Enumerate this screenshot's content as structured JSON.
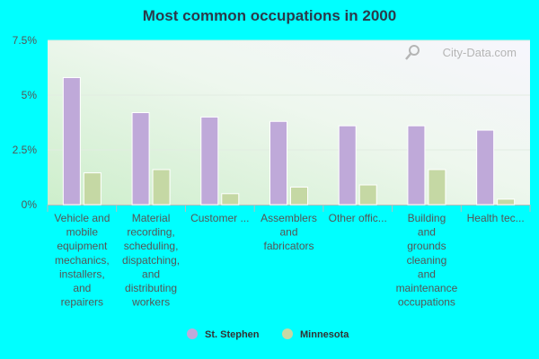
{
  "chart_data": {
    "type": "bar",
    "title": "Most common occupations in 2000",
    "categories": [
      [
        "Vehicle and",
        "mobile",
        "equipment",
        "mechanics,",
        "installers,",
        "and",
        "repairers"
      ],
      [
        "Material",
        "recording,",
        "scheduling,",
        "dispatching,",
        "and",
        "distributing",
        "workers"
      ],
      [
        "Customer ..."
      ],
      [
        "Assemblers",
        "and",
        "fabricators"
      ],
      [
        "Other offic..."
      ],
      [
        "Building",
        "and",
        "grounds",
        "cleaning",
        "and",
        "maintenance",
        "occupations"
      ],
      [
        "Health tec..."
      ]
    ],
    "series": [
      {
        "name": "St. Stephen",
        "color": "#bfa9d9",
        "values": [
          5.8,
          4.2,
          4.0,
          3.8,
          3.6,
          3.6,
          3.4
        ]
      },
      {
        "name": "Minnesota",
        "color": "#c5d8a4",
        "values": [
          1.45,
          1.6,
          0.5,
          0.8,
          0.9,
          1.6,
          0.25
        ]
      }
    ],
    "ylim": [
      0,
      7.5
    ],
    "yticks": [
      {
        "value": 0,
        "label": "0%"
      },
      {
        "value": 2.5,
        "label": "2.5%"
      },
      {
        "value": 5,
        "label": "5%"
      },
      {
        "value": 7.5,
        "label": "7.5%"
      }
    ],
    "grid": true,
    "legend_position": "bottom-center"
  },
  "watermark": "City-Data.com"
}
